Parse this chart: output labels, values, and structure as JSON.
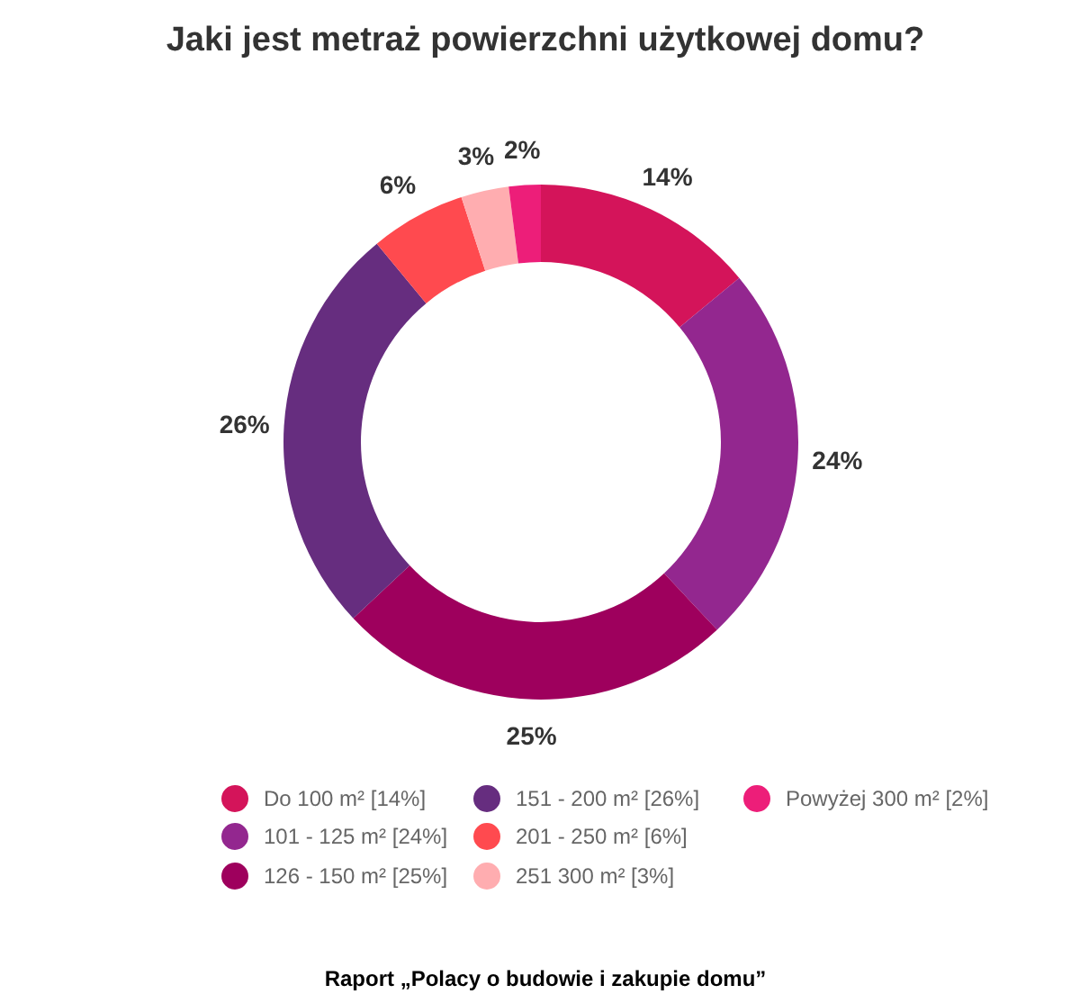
{
  "chart_data": {
    "type": "donut",
    "title": "Jaki jest metraż powierzchni użytkowej domu?",
    "categories": [
      "Do 100 m² [14%]",
      "101 - 125 m² [24%]",
      "126 - 150 m² [25%]",
      "151 - 200 m² [26%]",
      "201 - 250 m² [6%]",
      "251 300 m² [3%]",
      "Powyżej 300 m² [2%]"
    ],
    "values": [
      14,
      24,
      25,
      26,
      6,
      3,
      2
    ],
    "value_labels": [
      "14%",
      "24%",
      "25%",
      "26%",
      "6%",
      "3%",
      "2%"
    ],
    "colors": [
      "#d4145a",
      "#93278f",
      "#9e005d",
      "#662d7f",
      "#ff4a4f",
      "#ffadb0",
      "#ed1e79"
    ],
    "legend": "bottom",
    "annotations": [
      "Raport „Polacy o budowie i zakupie domu”"
    ]
  }
}
